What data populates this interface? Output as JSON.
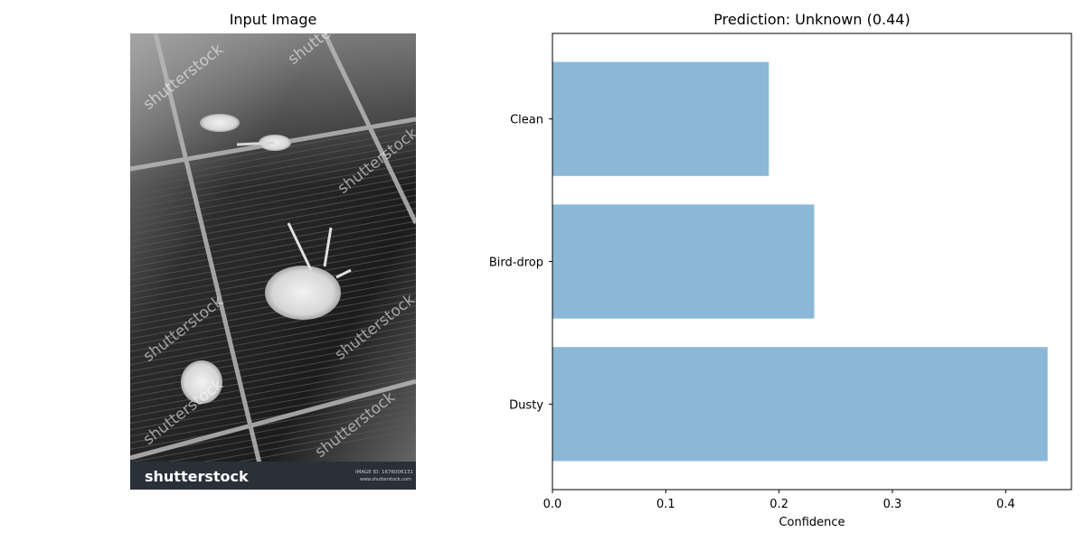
{
  "left_panel": {
    "title": "Input Image",
    "watermark": {
      "text": "shutterstock",
      "logo": "shutterstock",
      "image_id_label": "IMAGE ID: 1676006131",
      "site": "www.shutterstock.com"
    }
  },
  "chart_data": {
    "type": "bar",
    "orientation": "horizontal",
    "title": "Prediction: Unknown (0.44)",
    "xlabel": "Confidence",
    "ylabel": "",
    "categories": [
      "Dusty",
      "Bird-drop",
      "Clean"
    ],
    "values": [
      0.437,
      0.231,
      0.191
    ],
    "xlim": [
      0,
      0.458
    ],
    "xticks": [
      "0.0",
      "0.1",
      "0.2",
      "0.3",
      "0.4"
    ],
    "xtick_values": [
      0,
      0.1,
      0.2,
      0.3,
      0.4
    ],
    "bar_color": "#8cb8d8",
    "grid": false
  }
}
